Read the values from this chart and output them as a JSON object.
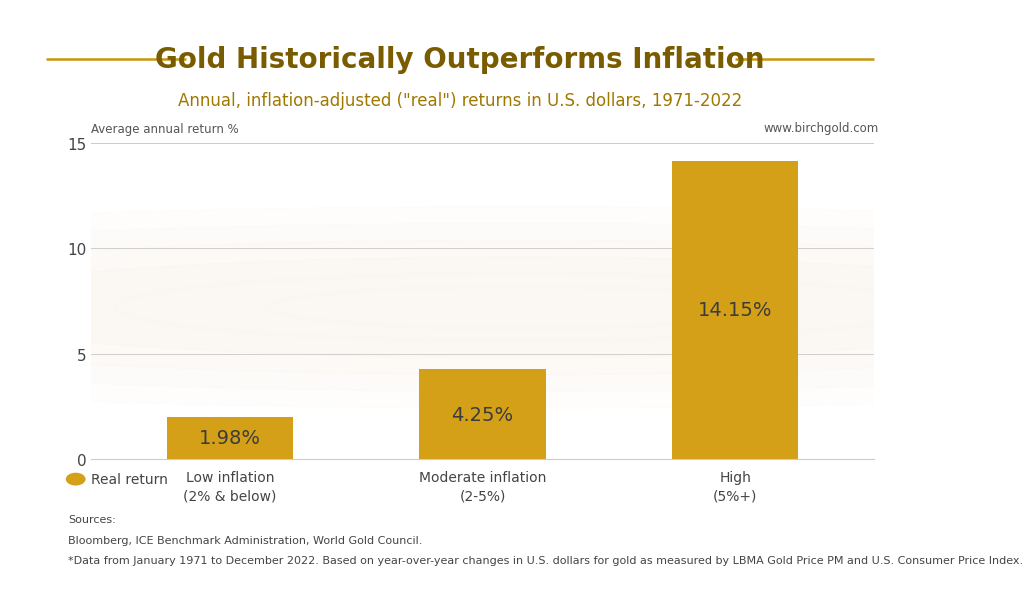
{
  "title": "Gold Historically Outperforms Inflation",
  "subtitle": "Annual, inflation-adjusted (\"real\") returns in U.S. dollars, 1971-2022",
  "categories": [
    "Low inflation\n(2% & below)",
    "Moderate inflation\n(2-5%)",
    "High\n(5%+)"
  ],
  "values": [
    1.98,
    4.25,
    14.15
  ],
  "value_labels": [
    "1.98%",
    "4.25%",
    "14.15%"
  ],
  "bar_color": "#D4A017",
  "ylabel": "Average annual return %",
  "ylim": [
    0,
    15
  ],
  "yticks": [
    0,
    5,
    10,
    15
  ],
  "website": "www.birchgold.com",
  "legend_label": "Real return",
  "source_line1": "Sources:",
  "source_line2": "Bloomberg, ICE Benchmark Administration, World Gold Council.",
  "source_line3": "*Data from January 1971 to December 2022. Based on year-over-year changes in U.S. dollars for gold as measured by LBMA Gold Price PM and U.S. Consumer Price Index.",
  "title_color": "#7A5C00",
  "subtitle_color": "#A07800",
  "axis_label_color": "#555555",
  "tick_color": "#444444",
  "bar_label_color": "#3C3C3C",
  "source_color": "#444444",
  "bg_color": "#FFFFFF",
  "grid_color": "#CCCCCC",
  "title_fontsize": 20,
  "subtitle_fontsize": 12,
  "bar_label_fontsize": 14,
  "ylabel_fontsize": 8.5,
  "tick_fontsize": 11,
  "xtick_fontsize": 10,
  "legend_fontsize": 10,
  "source_fontsize": 8,
  "website_fontsize": 8.5,
  "decoration_line_color": "#C8960C",
  "watermark_color": "#F0E6CC"
}
